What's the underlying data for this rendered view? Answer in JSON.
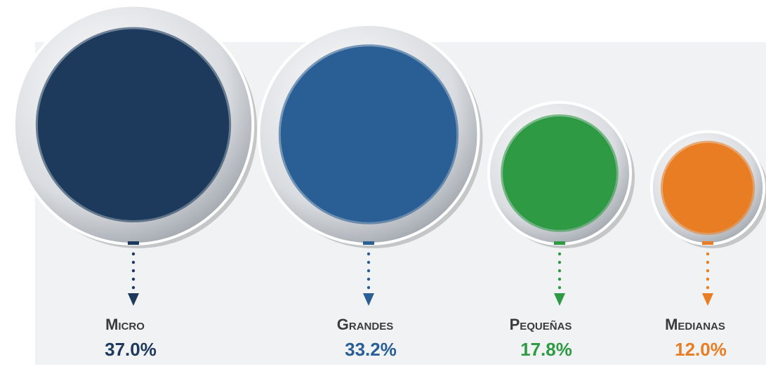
{
  "chart_data": {
    "type": "bubble",
    "categories": [
      "Micro",
      "Grandes",
      "Pequeñas",
      "Medianas"
    ],
    "values": [
      37.0,
      33.2,
      17.8,
      12.0
    ],
    "value_labels": [
      "37.0%",
      "33.2%",
      "17.8%",
      "12.0%"
    ],
    "colors": [
      "#1d3a5c",
      "#2a5f95",
      "#2e9a44",
      "#e87d23"
    ]
  }
}
